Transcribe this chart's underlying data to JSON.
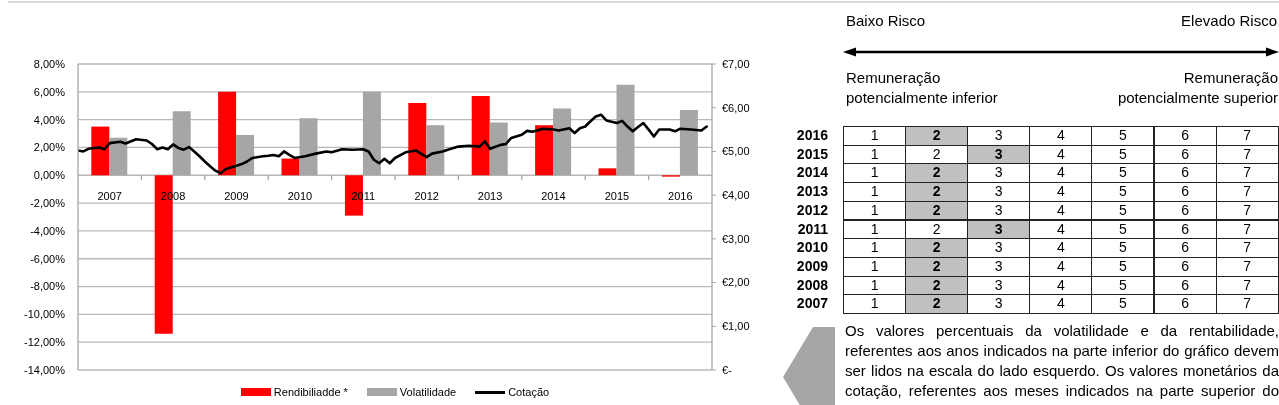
{
  "chart_data": [
    {
      "type": "bar",
      "x": [
        "2007-07",
        "2008-07",
        "2009-07",
        "2010-07",
        "2011-07",
        "2012-07",
        "2013-07",
        "2014-07",
        "2015-07",
        "2016-07"
      ],
      "series": [
        {
          "name": "Rendibiliadde *",
          "color": "#ff0000",
          "values": [
            3.5,
            -11.4,
            6.0,
            1.2,
            -2.9,
            5.2,
            5.7,
            3.6,
            0.5,
            -0.1
          ]
        },
        {
          "name": "Volatilidade",
          "color": "#a6a6a6",
          "values": [
            2.7,
            4.6,
            2.9,
            4.1,
            6.0,
            3.6,
            3.8,
            4.8,
            6.5,
            4.7
          ]
        },
        {
          "name": "Cotação",
          "type": "line",
          "axis": "y2",
          "color": "#000000",
          "x": [
            "2007-01",
            "2007-02",
            "2007-03",
            "2007-05",
            "2007-06",
            "2007-07",
            "2007-09",
            "2007-10",
            "2007-12",
            "2008-02",
            "2008-03",
            "2008-04",
            "2008-05",
            "2008-06",
            "2008-07",
            "2008-08",
            "2008-09",
            "2008-10",
            "2008-11",
            "2008-12",
            "2009-01",
            "2009-02",
            "2009-03",
            "2009-04",
            "2009-05",
            "2009-07",
            "2009-08",
            "2009-09",
            "2009-10",
            "2009-12",
            "2010-01",
            "2010-02",
            "2010-03",
            "2010-04",
            "2010-05",
            "2010-06",
            "2010-08",
            "2010-10",
            "2010-12",
            "2011-01",
            "2011-03",
            "2011-05",
            "2011-07",
            "2011-08",
            "2011-09",
            "2011-10",
            "2011-11",
            "2011-12",
            "2012-01",
            "2012-03",
            "2012-05",
            "2012-07",
            "2012-08",
            "2012-10",
            "2012-11",
            "2013-01",
            "2013-03",
            "2013-05",
            "2013-06",
            "2013-07",
            "2013-09",
            "2013-10",
            "2013-11",
            "2014-01",
            "2014-02",
            "2014-03",
            "2014-05",
            "2014-07",
            "2014-08",
            "2014-10",
            "2014-11",
            "2014-12",
            "2015-01",
            "2015-02",
            "2015-03",
            "2015-04",
            "2015-05",
            "2015-07",
            "2015-08",
            "2015-09",
            "2015-10",
            "2015-11",
            "2015-12",
            "2016-01",
            "2016-02",
            "2016-03",
            "2016-05",
            "2016-06",
            "2016-07",
            "2016-09",
            "2016-11",
            "2016-12"
          ],
          "values": [
            5.02,
            5.0,
            5.06,
            5.09,
            5.05,
            5.19,
            5.22,
            5.18,
            5.28,
            5.25,
            5.17,
            5.05,
            5.09,
            5.05,
            5.16,
            5.08,
            5.04,
            5.1,
            5.0,
            4.89,
            4.77,
            4.66,
            4.56,
            4.5,
            4.6,
            4.67,
            4.71,
            4.77,
            4.85,
            4.89,
            4.9,
            4.92,
            4.89,
            5.0,
            4.92,
            4.85,
            4.89,
            4.95,
            5.0,
            4.98,
            5.05,
            5.04,
            5.05,
            5.0,
            4.81,
            4.73,
            4.83,
            4.73,
            4.85,
            4.98,
            5.02,
            4.87,
            4.95,
            5.0,
            5.04,
            5.11,
            5.13,
            5.11,
            5.23,
            5.06,
            5.15,
            5.17,
            5.31,
            5.38,
            5.47,
            5.45,
            5.52,
            5.5,
            5.48,
            5.53,
            5.42,
            5.53,
            5.57,
            5.69,
            5.8,
            5.84,
            5.71,
            5.65,
            5.7,
            5.57,
            5.46,
            5.56,
            5.65,
            5.5,
            5.34,
            5.5,
            5.5,
            5.46,
            5.52,
            5.5,
            5.48,
            5.57
          ]
        }
      ],
      "xlim": [
        "2007-01",
        "2017-01"
      ],
      "xticks": [
        {
          "value": "2007-07",
          "label": "2007"
        },
        {
          "value": "2008-01",
          "label": null
        },
        {
          "value": "2008-07",
          "label": "2008"
        },
        {
          "value": "2009-01",
          "label": null
        },
        {
          "value": "2009-07",
          "label": "2009"
        },
        {
          "value": "2010-01",
          "label": null
        },
        {
          "value": "2010-07",
          "label": "2010"
        },
        {
          "value": "2011-01",
          "label": null
        },
        {
          "value": "2011-07",
          "label": "2011"
        },
        {
          "value": "2012-01",
          "label": null
        },
        {
          "value": "2012-07",
          "label": "2012"
        },
        {
          "value": "2013-01",
          "label": null
        },
        {
          "value": "2013-07",
          "label": "2013"
        },
        {
          "value": "2014-01",
          "label": null
        },
        {
          "value": "2014-07",
          "label": "2014"
        },
        {
          "value": "2015-01",
          "label": null
        },
        {
          "value": "2015-07",
          "label": "2015"
        },
        {
          "value": "2016-01",
          "label": null
        },
        {
          "value": "2016-07",
          "label": "2016"
        }
      ],
      "ylim": [
        -14,
        8
      ],
      "yticks": [
        {
          "value": -14,
          "label": "-14,00%"
        },
        {
          "value": -12,
          "label": "-12,00%"
        },
        {
          "value": -10,
          "label": "-10,00%"
        },
        {
          "value": -8,
          "label": "-8,00%"
        },
        {
          "value": -6,
          "label": "-6,00%"
        },
        {
          "value": -4,
          "label": "-4,00%"
        },
        {
          "value": -2,
          "label": "-2,00%"
        },
        {
          "value": 0,
          "label": "0,00%"
        },
        {
          "value": 2,
          "label": "2,00%"
        },
        {
          "value": 4,
          "label": "4,00%"
        },
        {
          "value": 6,
          "label": "6,00%"
        },
        {
          "value": 8,
          "label": "8,00%"
        }
      ],
      "y2lim": [
        0,
        7
      ],
      "y2ticks": [
        {
          "value": 0,
          "label": "€-"
        },
        {
          "value": 1,
          "label": "€1,00"
        },
        {
          "value": 2,
          "label": "€2,00"
        },
        {
          "value": 3,
          "label": "€3,00"
        },
        {
          "value": 4,
          "label": "€4,00"
        },
        {
          "value": 5,
          "label": "€5,00"
        },
        {
          "value": 6,
          "label": "€6,00"
        },
        {
          "value": 7,
          "label": "€7,00"
        }
      ],
      "grid": "y",
      "legend": "bottom",
      "marker": "none",
      "line_style": "solid"
    },
    {
      "type": "heatmap",
      "categories": [
        null,
        null,
        null,
        null,
        null,
        null,
        null
      ],
      "y_categories": [
        "2016",
        "2015",
        "2014",
        "2013",
        "2012",
        "2011",
        "2010",
        "2009",
        "2008",
        "2007"
      ],
      "cells": [
        [
          1,
          2,
          3,
          4,
          5,
          6,
          7
        ],
        [
          1,
          2,
          3,
          4,
          5,
          6,
          7
        ],
        [
          1,
          2,
          3,
          4,
          5,
          6,
          7
        ],
        [
          1,
          2,
          3,
          4,
          5,
          6,
          7
        ],
        [
          1,
          2,
          3,
          4,
          5,
          6,
          7
        ],
        [
          1,
          2,
          3,
          4,
          5,
          6,
          7
        ],
        [
          1,
          2,
          3,
          4,
          5,
          6,
          7
        ],
        [
          1,
          2,
          3,
          4,
          5,
          6,
          7
        ],
        [
          1,
          2,
          3,
          4,
          5,
          6,
          7
        ],
        [
          1,
          2,
          3,
          4,
          5,
          6,
          7
        ]
      ],
      "colors": [
        [
          "#ffffff",
          "#c0c0c0",
          "#ffffff",
          "#ffffff",
          "#ffffff",
          "#ffffff",
          "#ffffff"
        ],
        [
          "#ffffff",
          "#ffffff",
          "#c0c0c0",
          "#ffffff",
          "#ffffff",
          "#ffffff",
          "#ffffff"
        ],
        [
          "#ffffff",
          "#c0c0c0",
          "#ffffff",
          "#ffffff",
          "#ffffff",
          "#ffffff",
          "#ffffff"
        ],
        [
          "#ffffff",
          "#c0c0c0",
          "#ffffff",
          "#ffffff",
          "#ffffff",
          "#ffffff",
          "#ffffff"
        ],
        [
          "#ffffff",
          "#c0c0c0",
          "#ffffff",
          "#ffffff",
          "#ffffff",
          "#ffffff",
          "#ffffff"
        ],
        [
          "#ffffff",
          "#ffffff",
          "#c0c0c0",
          "#ffffff",
          "#ffffff",
          "#ffffff",
          "#ffffff"
        ],
        [
          "#ffffff",
          "#c0c0c0",
          "#ffffff",
          "#ffffff",
          "#ffffff",
          "#ffffff",
          "#ffffff"
        ],
        [
          "#ffffff",
          "#c0c0c0",
          "#ffffff",
          "#ffffff",
          "#ffffff",
          "#ffffff",
          "#ffffff"
        ],
        [
          "#ffffff",
          "#c0c0c0",
          "#ffffff",
          "#ffffff",
          "#ffffff",
          "#ffffff",
          "#ffffff"
        ],
        [
          "#ffffff",
          "#c0c0c0",
          "#ffffff",
          "#ffffff",
          "#ffffff",
          "#ffffff",
          "#ffffff"
        ]
      ],
      "data_labels": true,
      "annotations": [
        "Baixo Risco",
        "Elevado Risco",
        "Remuneração potencialmente inferior",
        "Remuneração potencialmente superior",
        "Os valores percentuais da volatilidade e da rentabilidade, referentes aos anos indicados na parte inferior do gráfico devem ser lidos na escala do lado esquerdo. Os valores monetários da cotação, referentes aos meses indicados na parte superior do"
      ]
    }
  ]
}
